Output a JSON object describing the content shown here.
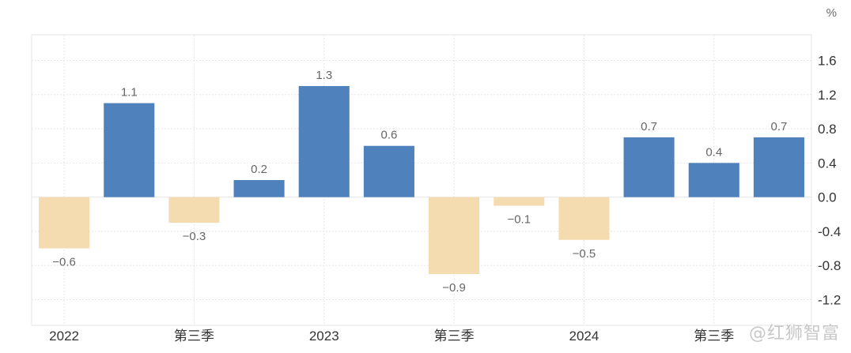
{
  "chart_data": {
    "type": "bar",
    "unit": "%",
    "categories": [
      "2022",
      "",
      "第三季",
      "",
      "2023",
      "",
      "第三季",
      "",
      "2024",
      "",
      "第三季",
      ""
    ],
    "values": [
      -0.6,
      1.1,
      -0.3,
      0.2,
      1.3,
      0.6,
      -0.9,
      -0.1,
      -0.5,
      0.7,
      0.4,
      0.7
    ],
    "value_labels": [
      "−0.6",
      "1.1",
      "−0.3",
      "0.2",
      "1.3",
      "0.6",
      "−0.9",
      "−0.1",
      "−0.5",
      "0.7",
      "0.4",
      "0.7"
    ],
    "ylim": [
      -1.5,
      1.9
    ],
    "yticks": [
      1.6,
      1.2,
      0.8,
      0.4,
      0.0,
      -0.4,
      -0.8,
      -1.2
    ],
    "ytick_labels": [
      "1.6",
      "1.2",
      "0.8",
      "0.4",
      "0.0",
      "-0.4",
      "-0.8",
      "-1.2"
    ],
    "y_axis_position": "right",
    "grid": true,
    "colors": {
      "positive": "#4f81bd",
      "negative": "#f5dcb0",
      "grid": "#e6e6e6",
      "label": "#666666",
      "tick": "#333333"
    },
    "title": "",
    "xlabel": "",
    "ylabel": ""
  },
  "watermark": "@红狮智富"
}
